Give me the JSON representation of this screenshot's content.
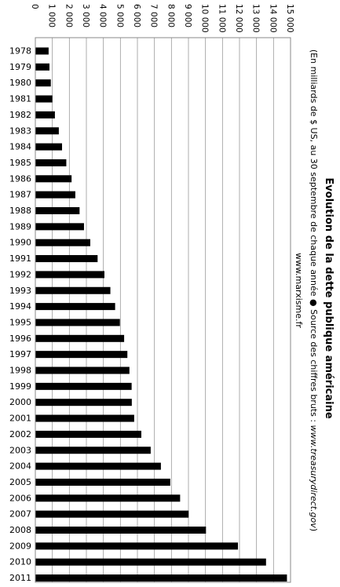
{
  "chart_data": {
    "type": "bar",
    "orientation": "rotated-90-clockwise",
    "title": "Evolution de la dette publique américaine",
    "subtitle_prefix": "(En milliards de $ US, au 30 septembre  de chaque année ● Source des chiffres bruts : ",
    "subtitle_source": "www.treasurydirect.gov",
    "subtitle_suffix": ")",
    "website": "www.marxisme.fr",
    "xlabel": "",
    "ylabel": "",
    "ylim": [
      0,
      15000
    ],
    "ticks": [
      0,
      1000,
      2000,
      3000,
      4000,
      5000,
      6000,
      7000,
      8000,
      9000,
      10000,
      11000,
      12000,
      13000,
      14000,
      15000
    ],
    "tick_labels": [
      "0",
      "1 000",
      "2 000",
      "3 000",
      "4 000",
      "5 000",
      "6 000",
      "7 000",
      "8 000",
      "9 000",
      "10 000",
      "11 000",
      "12 000",
      "13 000",
      "14 000",
      "15 000"
    ],
    "grid": true,
    "categories": [
      "1978",
      "1979",
      "1980",
      "1981",
      "1982",
      "1983",
      "1984",
      "1985",
      "1986",
      "1987",
      "1988",
      "1989",
      "1990",
      "1991",
      "1992",
      "1993",
      "1994",
      "1995",
      "1996",
      "1997",
      "1998",
      "1999",
      "2000",
      "2001",
      "2002",
      "2003",
      "2004",
      "2005",
      "2006",
      "2007",
      "2008",
      "2009",
      "2010",
      "2011"
    ],
    "values": [
      780,
      830,
      910,
      1000,
      1150,
      1380,
      1570,
      1820,
      2130,
      2350,
      2600,
      2860,
      3230,
      3660,
      4060,
      4410,
      4690,
      4970,
      5220,
      5410,
      5530,
      5660,
      5670,
      5810,
      6230,
      6780,
      7380,
      7930,
      8510,
      9010,
      10030,
      11910,
      13560,
      14790
    ],
    "bar_color": "#000000"
  }
}
